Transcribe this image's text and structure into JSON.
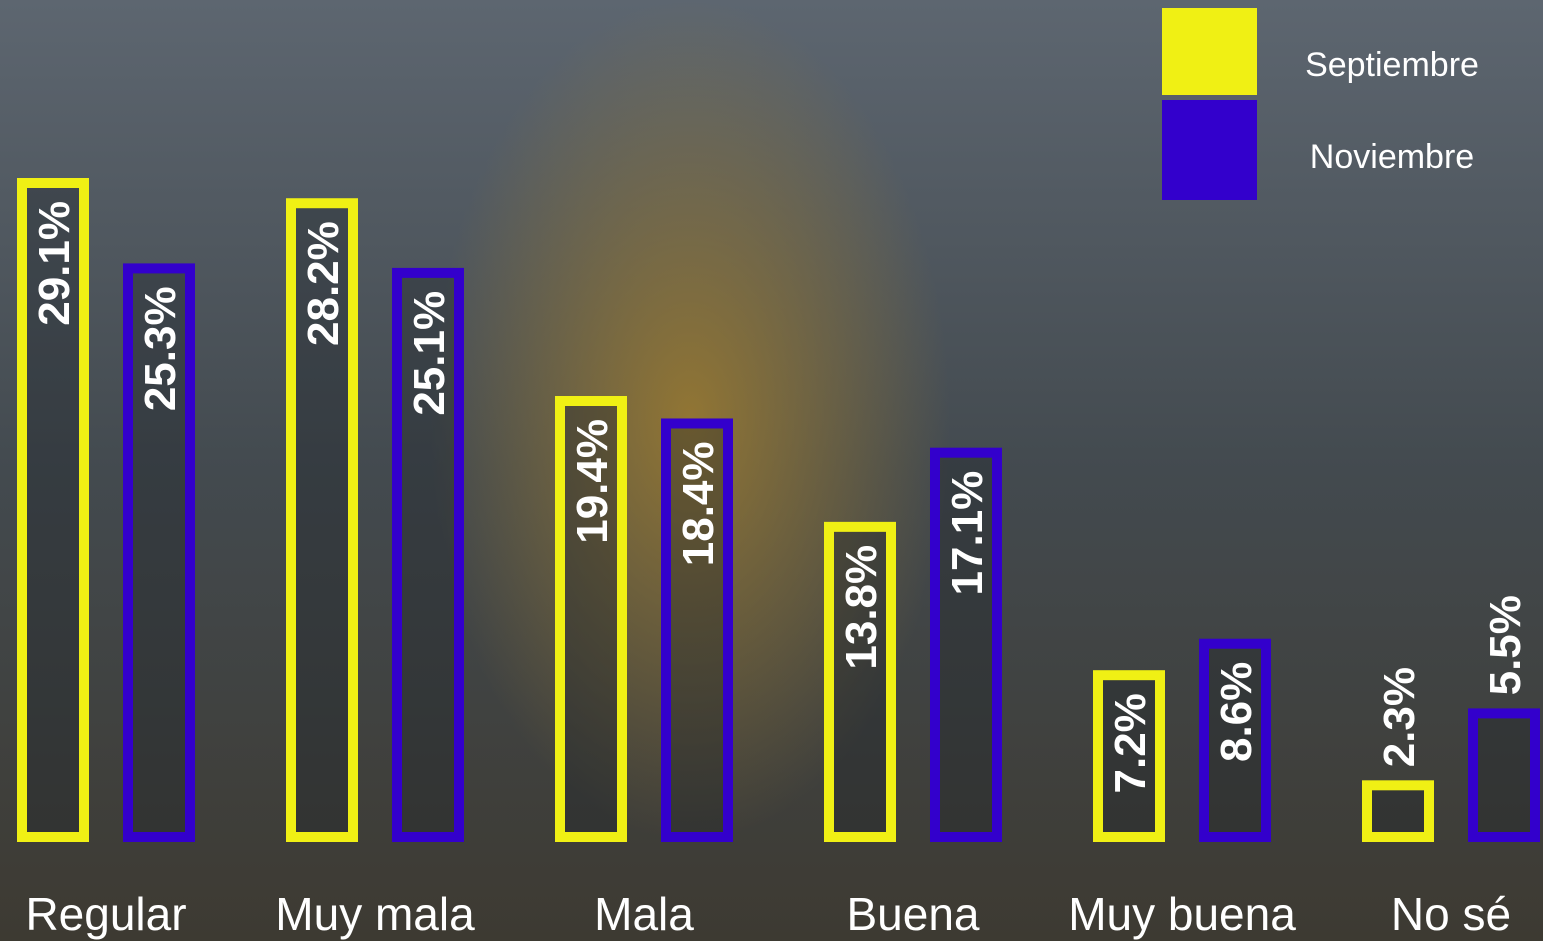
{
  "chart_data": {
    "type": "bar",
    "categories": [
      "Regular",
      "Muy mala",
      "Mala",
      "Buena",
      "Muy buena",
      "No sé"
    ],
    "series": [
      {
        "name": "Septiembre",
        "color": "#f0f014",
        "values": [
          29.1,
          28.2,
          19.4,
          13.8,
          7.2,
          2.3
        ],
        "value_labels": [
          "29.1%",
          "28.2%",
          "19.4%",
          "13.8%",
          "7.2%",
          "2.3%"
        ]
      },
      {
        "name": "Noviembre",
        "color": "#3300cc",
        "values": [
          25.3,
          25.1,
          18.4,
          17.1,
          8.6,
          5.5
        ],
        "value_labels": [
          "25.3%",
          "25.1%",
          "18.4%",
          "17.1%",
          "8.6%",
          "5.5%"
        ]
      }
    ],
    "legend": "top-right"
  }
}
